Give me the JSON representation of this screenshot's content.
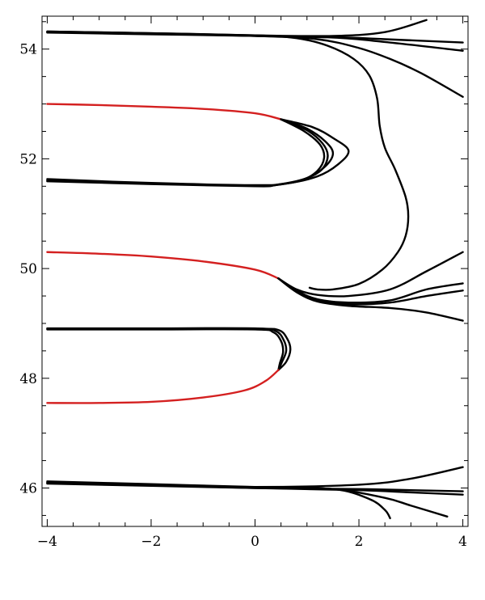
{
  "chart_data": {
    "type": "line",
    "title": "",
    "xlabel": "",
    "ylabel": "",
    "xlim": [
      -4.1,
      4.1
    ],
    "ylim": [
      45.3,
      54.6
    ],
    "xticks": [
      -4,
      -2,
      0,
      2,
      4
    ],
    "xtick_labels": [
      "−4",
      "−2",
      "0",
      "2",
      "4"
    ],
    "yticks": [
      46,
      48,
      50,
      52,
      54
    ],
    "ytick_labels": [
      "46",
      "48",
      "50",
      "52",
      "54"
    ],
    "grid": false,
    "legend": "none",
    "colors": {
      "black": "#000000",
      "red": "#d42020"
    },
    "series": [
      {
        "color": "black",
        "points": [
          [
            -4,
            54.32
          ],
          [
            -2,
            54.29
          ],
          [
            0,
            54.25
          ],
          [
            1.5,
            54.24
          ],
          [
            2.5,
            54.31
          ],
          [
            3.3,
            54.53
          ]
        ]
      },
      {
        "color": "black",
        "points": [
          [
            -4,
            54.3
          ],
          [
            -2,
            54.27
          ],
          [
            0,
            54.24
          ],
          [
            1.5,
            54.22
          ],
          [
            2.5,
            54.18
          ],
          [
            4,
            54.12
          ]
        ]
      },
      {
        "color": "black",
        "points": [
          [
            -4,
            54.31
          ],
          [
            -2,
            54.28
          ],
          [
            0,
            54.24
          ],
          [
            1.5,
            54.21
          ],
          [
            2.5,
            54.13
          ],
          [
            4,
            53.97
          ]
        ]
      },
      {
        "color": "black",
        "points": [
          [
            -4,
            54.31
          ],
          [
            -2,
            54.28
          ],
          [
            0,
            54.24
          ],
          [
            1.2,
            54.18
          ],
          [
            2,
            54.02
          ],
          [
            2.6,
            53.82
          ],
          [
            3.2,
            53.56
          ],
          [
            4,
            53.13
          ]
        ]
      },
      {
        "color": "black",
        "points": [
          [
            -4,
            54.32
          ],
          [
            -2,
            54.29
          ],
          [
            0,
            54.25
          ],
          [
            0.8,
            54.2
          ],
          [
            1.4,
            54.06
          ],
          [
            1.9,
            53.82
          ],
          [
            2.2,
            53.52
          ],
          [
            2.35,
            53.1
          ],
          [
            2.4,
            52.6
          ],
          [
            2.5,
            52.2
          ],
          [
            2.7,
            51.8
          ],
          [
            2.9,
            51.3
          ],
          [
            2.95,
            50.95
          ],
          [
            2.9,
            50.6
          ],
          [
            2.75,
            50.3
          ],
          [
            2.45,
            49.98
          ],
          [
            2.0,
            49.72
          ],
          [
            1.5,
            49.62
          ],
          [
            1.2,
            49.62
          ],
          [
            1.05,
            49.65
          ]
        ]
      },
      {
        "color": "red",
        "points": [
          [
            -4,
            53.0
          ],
          [
            -3,
            52.98
          ],
          [
            -2,
            52.95
          ],
          [
            -1,
            52.91
          ],
          [
            0,
            52.83
          ],
          [
            0.5,
            52.72
          ]
        ]
      },
      {
        "color": "black",
        "points": [
          [
            0.5,
            52.72
          ],
          [
            1.1,
            52.58
          ],
          [
            1.5,
            52.38
          ],
          [
            1.8,
            52.15
          ],
          [
            1.6,
            51.9
          ],
          [
            1.2,
            51.68
          ],
          [
            0.6,
            51.55
          ],
          [
            0,
            51.52
          ],
          [
            -2,
            51.56
          ],
          [
            -4,
            51.63
          ]
        ]
      },
      {
        "color": "black",
        "points": [
          [
            0.5,
            52.72
          ],
          [
            1.0,
            52.55
          ],
          [
            1.35,
            52.32
          ],
          [
            1.5,
            52.1
          ],
          [
            1.35,
            51.86
          ],
          [
            1.0,
            51.65
          ],
          [
            0.5,
            51.54
          ],
          [
            0,
            51.51
          ],
          [
            -2,
            51.55
          ],
          [
            -4,
            51.61
          ]
        ]
      },
      {
        "color": "black",
        "points": [
          [
            0.5,
            52.72
          ],
          [
            1.0,
            52.52
          ],
          [
            1.3,
            52.28
          ],
          [
            1.4,
            52.05
          ],
          [
            1.28,
            51.8
          ],
          [
            0.95,
            51.63
          ],
          [
            0.45,
            51.53
          ],
          [
            0,
            51.51
          ],
          [
            -2,
            51.55
          ],
          [
            -4,
            51.6
          ]
        ]
      },
      {
        "color": "black",
        "points": [
          [
            0.5,
            52.72
          ],
          [
            0.95,
            52.5
          ],
          [
            1.25,
            52.26
          ],
          [
            1.33,
            52.02
          ],
          [
            1.2,
            51.78
          ],
          [
            0.9,
            51.61
          ],
          [
            0.4,
            51.52
          ],
          [
            0,
            51.5
          ],
          [
            -2,
            51.54
          ],
          [
            -4,
            51.59
          ]
        ]
      },
      {
        "color": "red",
        "points": [
          [
            -4,
            50.3
          ],
          [
            -3,
            50.27
          ],
          [
            -2,
            50.22
          ],
          [
            -1,
            50.13
          ],
          [
            0,
            49.98
          ],
          [
            0.45,
            49.82
          ]
        ]
      },
      {
        "color": "black",
        "points": [
          [
            0.45,
            49.82
          ],
          [
            0.8,
            49.6
          ],
          [
            1.2,
            49.44
          ],
          [
            1.8,
            49.38
          ],
          [
            2.6,
            49.42
          ],
          [
            3.3,
            49.62
          ],
          [
            4,
            49.73
          ]
        ]
      },
      {
        "color": "black",
        "points": [
          [
            0.45,
            49.82
          ],
          [
            0.8,
            49.58
          ],
          [
            1.2,
            49.42
          ],
          [
            1.8,
            49.35
          ],
          [
            2.6,
            49.38
          ],
          [
            3.3,
            49.5
          ],
          [
            4,
            49.6
          ]
        ]
      },
      {
        "color": "black",
        "points": [
          [
            0.45,
            49.82
          ],
          [
            0.8,
            49.57
          ],
          [
            1.2,
            49.4
          ],
          [
            1.8,
            49.32
          ],
          [
            2.6,
            49.28
          ],
          [
            3.3,
            49.2
          ],
          [
            4,
            49.05
          ]
        ]
      },
      {
        "color": "black",
        "points": [
          [
            0.45,
            49.82
          ],
          [
            0.8,
            49.62
          ],
          [
            1.2,
            49.52
          ],
          [
            1.8,
            49.5
          ],
          [
            2.6,
            49.62
          ],
          [
            3.3,
            49.95
          ],
          [
            4,
            50.3
          ]
        ]
      },
      {
        "color": "black",
        "points": [
          [
            -4,
            48.9
          ],
          [
            -2,
            48.9
          ],
          [
            0,
            48.9
          ],
          [
            0.45,
            48.88
          ],
          [
            0.62,
            48.72
          ],
          [
            0.68,
            48.52
          ],
          [
            0.6,
            48.3
          ],
          [
            0.45,
            48.15
          ]
        ]
      },
      {
        "color": "black",
        "points": [
          [
            -4,
            48.91
          ],
          [
            -2,
            48.91
          ],
          [
            0,
            48.91
          ],
          [
            0.4,
            48.86
          ],
          [
            0.55,
            48.7
          ],
          [
            0.6,
            48.5
          ],
          [
            0.52,
            48.3
          ],
          [
            0.45,
            48.15
          ]
        ]
      },
      {
        "color": "black",
        "points": [
          [
            -4,
            48.89
          ],
          [
            -2,
            48.89
          ],
          [
            0,
            48.89
          ],
          [
            0.35,
            48.84
          ],
          [
            0.5,
            48.68
          ],
          [
            0.54,
            48.48
          ],
          [
            0.48,
            48.28
          ],
          [
            0.45,
            48.15
          ]
        ]
      },
      {
        "color": "red",
        "points": [
          [
            0.45,
            48.15
          ],
          [
            0.2,
            47.95
          ],
          [
            -0.2,
            47.78
          ],
          [
            -1,
            47.65
          ],
          [
            -2,
            47.57
          ],
          [
            -3,
            47.55
          ],
          [
            -4,
            47.55
          ]
        ]
      },
      {
        "color": "black",
        "points": [
          [
            -4,
            46.12
          ],
          [
            -2,
            46.07
          ],
          [
            0,
            46.02
          ],
          [
            1.5,
            45.98
          ],
          [
            2.5,
            45.82
          ],
          [
            3,
            45.68
          ],
          [
            3.7,
            45.48
          ]
        ]
      },
      {
        "color": "black",
        "points": [
          [
            -4,
            46.1
          ],
          [
            -2,
            46.05
          ],
          [
            0,
            46.01
          ],
          [
            1.5,
            45.98
          ],
          [
            2.2,
            45.8
          ],
          [
            2.5,
            45.6
          ],
          [
            2.6,
            45.45
          ]
        ]
      },
      {
        "color": "black",
        "points": [
          [
            -4,
            46.09
          ],
          [
            -2,
            46.05
          ],
          [
            0,
            46.0
          ],
          [
            2,
            45.96
          ],
          [
            3,
            45.92
          ],
          [
            4,
            45.88
          ]
        ]
      },
      {
        "color": "black",
        "points": [
          [
            -4,
            46.08
          ],
          [
            -2,
            46.04
          ],
          [
            0,
            46.0
          ],
          [
            2,
            45.98
          ],
          [
            3,
            45.96
          ],
          [
            4,
            45.94
          ]
        ]
      },
      {
        "color": "black",
        "points": [
          [
            -4,
            46.1
          ],
          [
            -2,
            46.06
          ],
          [
            0,
            46.02
          ],
          [
            2,
            46.06
          ],
          [
            3,
            46.17
          ],
          [
            4,
            46.38
          ]
        ]
      }
    ]
  }
}
